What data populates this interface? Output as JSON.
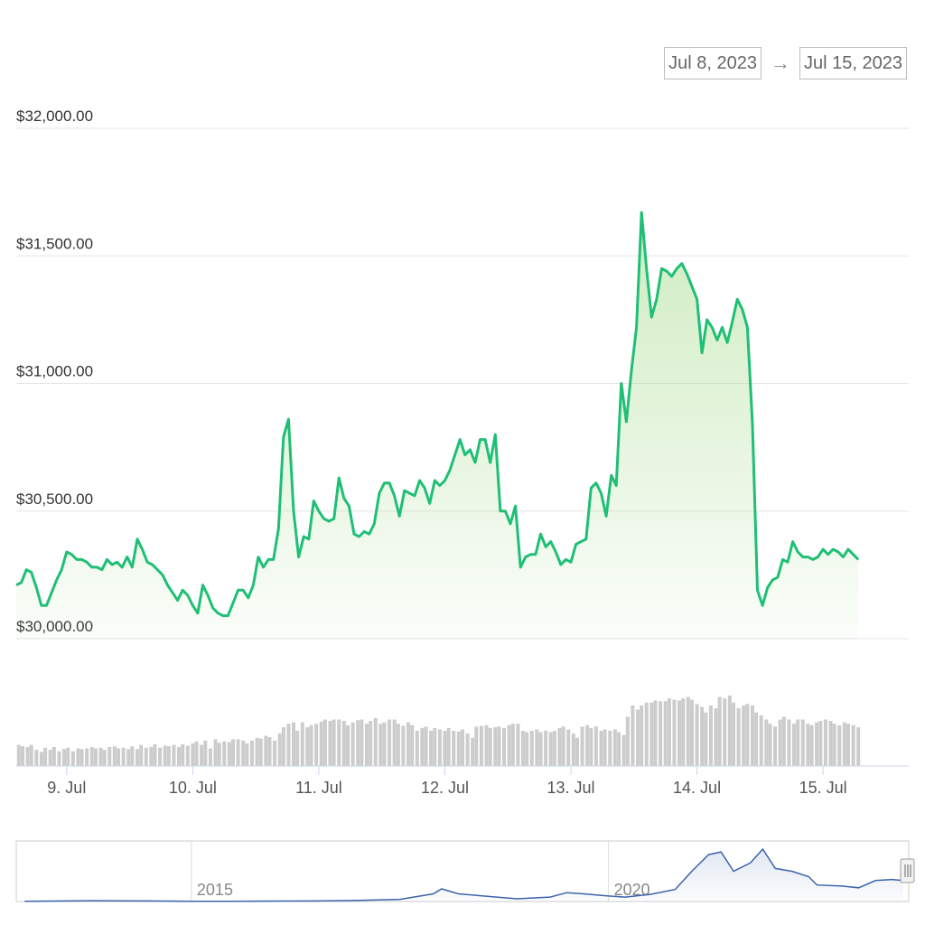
{
  "range_selector": {
    "from": "Jul 8, 2023",
    "arrow": "→",
    "to": "Jul 15, 2023"
  },
  "colors": {
    "line": "#1fbf75",
    "fill": "#a8dc8f",
    "volume": "#cccccc",
    "navigator_line": "#3c64aa",
    "grid": "#e6e6e6"
  },
  "chart_data": {
    "type": "line",
    "y_ticks": [
      "$32,000.00",
      "$31,500.00",
      "$31,000.00",
      "$30,500.00",
      "$30,000.00"
    ],
    "ylim": [
      30000,
      32000
    ],
    "x_ticks": [
      "9. Jul",
      "10. Jul",
      "11. Jul",
      "12. Jul",
      "13. Jul",
      "14. Jul",
      "15. Jul"
    ],
    "xlim": [
      8.6,
      15.68
    ],
    "price_series": [
      [
        8.6,
        30210
      ],
      [
        8.64,
        30220
      ],
      [
        8.68,
        30270
      ],
      [
        8.72,
        30260
      ],
      [
        8.76,
        30200
      ],
      [
        8.8,
        30130
      ],
      [
        8.84,
        30130
      ],
      [
        8.88,
        30180
      ],
      [
        8.92,
        30230
      ],
      [
        8.96,
        30270
      ],
      [
        9.0,
        30340
      ],
      [
        9.04,
        30330
      ],
      [
        9.08,
        30310
      ],
      [
        9.12,
        30310
      ],
      [
        9.16,
        30300
      ],
      [
        9.2,
        30280
      ],
      [
        9.24,
        30280
      ],
      [
        9.28,
        30270
      ],
      [
        9.32,
        30310
      ],
      [
        9.36,
        30290
      ],
      [
        9.4,
        30300
      ],
      [
        9.44,
        30280
      ],
      [
        9.48,
        30320
      ],
      [
        9.52,
        30280
      ],
      [
        9.56,
        30390
      ],
      [
        9.6,
        30350
      ],
      [
        9.64,
        30300
      ],
      [
        9.68,
        30290
      ],
      [
        9.72,
        30270
      ],
      [
        9.76,
        30250
      ],
      [
        9.8,
        30210
      ],
      [
        9.84,
        30180
      ],
      [
        9.88,
        30150
      ],
      [
        9.92,
        30190
      ],
      [
        9.96,
        30170
      ],
      [
        10.0,
        30130
      ],
      [
        10.04,
        30100
      ],
      [
        10.08,
        30210
      ],
      [
        10.12,
        30170
      ],
      [
        10.16,
        30120
      ],
      [
        10.2,
        30100
      ],
      [
        10.24,
        30090
      ],
      [
        10.28,
        30090
      ],
      [
        10.32,
        30140
      ],
      [
        10.36,
        30190
      ],
      [
        10.4,
        30190
      ],
      [
        10.44,
        30160
      ],
      [
        10.48,
        30210
      ],
      [
        10.52,
        30320
      ],
      [
        10.56,
        30280
      ],
      [
        10.6,
        30310
      ],
      [
        10.64,
        30310
      ],
      [
        10.68,
        30430
      ],
      [
        10.72,
        30790
      ],
      [
        10.76,
        30860
      ],
      [
        10.8,
        30500
      ],
      [
        10.84,
        30320
      ],
      [
        10.88,
        30400
      ],
      [
        10.92,
        30390
      ],
      [
        10.96,
        30540
      ],
      [
        11.0,
        30500
      ],
      [
        11.04,
        30470
      ],
      [
        11.08,
        30460
      ],
      [
        11.12,
        30470
      ],
      [
        11.16,
        30630
      ],
      [
        11.2,
        30550
      ],
      [
        11.24,
        30520
      ],
      [
        11.28,
        30410
      ],
      [
        11.32,
        30400
      ],
      [
        11.36,
        30420
      ],
      [
        11.4,
        30410
      ],
      [
        11.44,
        30450
      ],
      [
        11.48,
        30570
      ],
      [
        11.52,
        30610
      ],
      [
        11.56,
        30610
      ],
      [
        11.6,
        30560
      ],
      [
        11.64,
        30480
      ],
      [
        11.68,
        30580
      ],
      [
        11.72,
        30570
      ],
      [
        11.76,
        30560
      ],
      [
        11.8,
        30620
      ],
      [
        11.84,
        30590
      ],
      [
        11.88,
        30530
      ],
      [
        11.92,
        30620
      ],
      [
        11.96,
        30600
      ],
      [
        12.0,
        30620
      ],
      [
        12.04,
        30660
      ],
      [
        12.08,
        30720
      ],
      [
        12.12,
        30780
      ],
      [
        12.16,
        30720
      ],
      [
        12.2,
        30740
      ],
      [
        12.24,
        30690
      ],
      [
        12.28,
        30780
      ],
      [
        12.32,
        30780
      ],
      [
        12.36,
        30690
      ],
      [
        12.4,
        30800
      ],
      [
        12.44,
        30500
      ],
      [
        12.48,
        30500
      ],
      [
        12.52,
        30450
      ],
      [
        12.56,
        30520
      ],
      [
        12.6,
        30280
      ],
      [
        12.64,
        30320
      ],
      [
        12.68,
        30330
      ],
      [
        12.72,
        30330
      ],
      [
        12.76,
        30410
      ],
      [
        12.8,
        30360
      ],
      [
        12.84,
        30380
      ],
      [
        12.88,
        30340
      ],
      [
        12.92,
        30290
      ],
      [
        12.96,
        30310
      ],
      [
        13.0,
        30300
      ],
      [
        13.04,
        30370
      ],
      [
        13.08,
        30380
      ],
      [
        13.12,
        30390
      ],
      [
        13.16,
        30590
      ],
      [
        13.2,
        30610
      ],
      [
        13.24,
        30570
      ],
      [
        13.28,
        30480
      ],
      [
        13.32,
        30640
      ],
      [
        13.36,
        30600
      ],
      [
        13.4,
        31000
      ],
      [
        13.44,
        30850
      ],
      [
        13.48,
        31050
      ],
      [
        13.52,
        31220
      ],
      [
        13.56,
        31670
      ],
      [
        13.6,
        31450
      ],
      [
        13.64,
        31260
      ],
      [
        13.68,
        31330
      ],
      [
        13.72,
        31450
      ],
      [
        13.76,
        31440
      ],
      [
        13.8,
        31420
      ],
      [
        13.84,
        31450
      ],
      [
        13.88,
        31470
      ],
      [
        13.92,
        31430
      ],
      [
        13.96,
        31380
      ],
      [
        14.0,
        31330
      ],
      [
        14.04,
        31120
      ],
      [
        14.08,
        31250
      ],
      [
        14.12,
        31220
      ],
      [
        14.16,
        31170
      ],
      [
        14.2,
        31220
      ],
      [
        14.24,
        31160
      ],
      [
        14.28,
        31240
      ],
      [
        14.32,
        31330
      ],
      [
        14.36,
        31290
      ],
      [
        14.4,
        31220
      ],
      [
        14.44,
        30840
      ],
      [
        14.48,
        30190
      ],
      [
        14.52,
        30130
      ],
      [
        14.56,
        30200
      ],
      [
        14.6,
        30230
      ],
      [
        14.64,
        30240
      ],
      [
        14.68,
        30310
      ],
      [
        14.72,
        30300
      ],
      [
        14.76,
        30380
      ],
      [
        14.8,
        30340
      ],
      [
        14.84,
        30320
      ],
      [
        14.88,
        30320
      ],
      [
        14.92,
        30310
      ],
      [
        14.96,
        30320
      ],
      [
        15.0,
        30350
      ],
      [
        15.04,
        30330
      ],
      [
        15.08,
        30350
      ],
      [
        15.12,
        30340
      ],
      [
        15.16,
        30320
      ],
      [
        15.2,
        30350
      ],
      [
        15.24,
        30330
      ],
      [
        15.28,
        30310
      ]
    ],
    "volume_series": [
      [
        8.62,
        0.3
      ],
      [
        8.65,
        0.28
      ],
      [
        8.69,
        0.27
      ],
      [
        8.72,
        0.3
      ],
      [
        8.76,
        0.23
      ],
      [
        8.8,
        0.2
      ],
      [
        8.83,
        0.26
      ],
      [
        8.87,
        0.23
      ],
      [
        8.9,
        0.27
      ],
      [
        8.94,
        0.21
      ],
      [
        8.98,
        0.24
      ],
      [
        9.01,
        0.26
      ],
      [
        9.05,
        0.21
      ],
      [
        9.09,
        0.25
      ],
      [
        9.12,
        0.24
      ],
      [
        9.16,
        0.25
      ],
      [
        9.2,
        0.27
      ],
      [
        9.23,
        0.25
      ],
      [
        9.27,
        0.26
      ],
      [
        9.3,
        0.23
      ],
      [
        9.34,
        0.27
      ],
      [
        9.38,
        0.28
      ],
      [
        9.41,
        0.25
      ],
      [
        9.45,
        0.26
      ],
      [
        9.49,
        0.24
      ],
      [
        9.52,
        0.28
      ],
      [
        9.56,
        0.24
      ],
      [
        9.59,
        0.3
      ],
      [
        9.63,
        0.26
      ],
      [
        9.67,
        0.27
      ],
      [
        9.7,
        0.31
      ],
      [
        9.74,
        0.26
      ],
      [
        9.78,
        0.29
      ],
      [
        9.81,
        0.28
      ],
      [
        9.85,
        0.3
      ],
      [
        9.89,
        0.27
      ],
      [
        9.92,
        0.31
      ],
      [
        9.96,
        0.29
      ],
      [
        10.0,
        0.32
      ],
      [
        10.03,
        0.35
      ],
      [
        10.07,
        0.3
      ],
      [
        10.1,
        0.36
      ],
      [
        10.14,
        0.25
      ],
      [
        10.18,
        0.38
      ],
      [
        10.21,
        0.33
      ],
      [
        10.25,
        0.35
      ],
      [
        10.29,
        0.34
      ],
      [
        10.32,
        0.38
      ],
      [
        10.36,
        0.38
      ],
      [
        10.4,
        0.36
      ],
      [
        10.43,
        0.32
      ],
      [
        10.47,
        0.36
      ],
      [
        10.51,
        0.4
      ],
      [
        10.54,
        0.39
      ],
      [
        10.58,
        0.43
      ],
      [
        10.61,
        0.41
      ],
      [
        10.65,
        0.36
      ],
      [
        10.69,
        0.46
      ],
      [
        10.72,
        0.55
      ],
      [
        10.76,
        0.6
      ],
      [
        10.8,
        0.62
      ],
      [
        10.83,
        0.5
      ],
      [
        10.87,
        0.62
      ],
      [
        10.91,
        0.55
      ],
      [
        10.94,
        0.58
      ],
      [
        10.98,
        0.6
      ],
      [
        11.02,
        0.63
      ],
      [
        11.05,
        0.66
      ],
      [
        11.09,
        0.64
      ],
      [
        11.12,
        0.66
      ],
      [
        11.16,
        0.66
      ],
      [
        11.2,
        0.64
      ],
      [
        11.23,
        0.58
      ],
      [
        11.27,
        0.62
      ],
      [
        11.31,
        0.65
      ],
      [
        11.34,
        0.66
      ],
      [
        11.38,
        0.6
      ],
      [
        11.41,
        0.64
      ],
      [
        11.45,
        0.68
      ],
      [
        11.49,
        0.6
      ],
      [
        11.52,
        0.62
      ],
      [
        11.56,
        0.66
      ],
      [
        11.6,
        0.66
      ],
      [
        11.63,
        0.6
      ],
      [
        11.67,
        0.57
      ],
      [
        11.71,
        0.62
      ],
      [
        11.74,
        0.58
      ],
      [
        11.78,
        0.5
      ],
      [
        11.82,
        0.54
      ],
      [
        11.85,
        0.56
      ],
      [
        11.89,
        0.5
      ],
      [
        11.92,
        0.54
      ],
      [
        11.96,
        0.52
      ],
      [
        12.0,
        0.5
      ],
      [
        12.03,
        0.54
      ],
      [
        12.07,
        0.5
      ],
      [
        12.11,
        0.49
      ],
      [
        12.14,
        0.52
      ],
      [
        12.18,
        0.46
      ],
      [
        12.22,
        0.4
      ],
      [
        12.25,
        0.56
      ],
      [
        12.29,
        0.57
      ],
      [
        12.33,
        0.58
      ],
      [
        12.36,
        0.54
      ],
      [
        12.4,
        0.55
      ],
      [
        12.43,
        0.56
      ],
      [
        12.47,
        0.54
      ],
      [
        12.51,
        0.58
      ],
      [
        12.54,
        0.6
      ],
      [
        12.58,
        0.6
      ],
      [
        12.62,
        0.5
      ],
      [
        12.65,
        0.48
      ],
      [
        12.69,
        0.5
      ],
      [
        12.73,
        0.52
      ],
      [
        12.76,
        0.48
      ],
      [
        12.8,
        0.5
      ],
      [
        12.84,
        0.48
      ],
      [
        12.87,
        0.5
      ],
      [
        12.91,
        0.54
      ],
      [
        12.94,
        0.56
      ],
      [
        12.98,
        0.52
      ],
      [
        13.02,
        0.46
      ],
      [
        13.05,
        0.4
      ],
      [
        13.09,
        0.56
      ],
      [
        13.13,
        0.58
      ],
      [
        13.16,
        0.54
      ],
      [
        13.2,
        0.56
      ],
      [
        13.24,
        0.5
      ],
      [
        13.27,
        0.52
      ],
      [
        13.31,
        0.5
      ],
      [
        13.35,
        0.52
      ],
      [
        13.38,
        0.48
      ],
      [
        13.42,
        0.44
      ],
      [
        13.45,
        0.7
      ],
      [
        13.49,
        0.86
      ],
      [
        13.53,
        0.8
      ],
      [
        13.56,
        0.86
      ],
      [
        13.6,
        0.9
      ],
      [
        13.64,
        0.9
      ],
      [
        13.67,
        0.93
      ],
      [
        13.71,
        0.92
      ],
      [
        13.75,
        0.92
      ],
      [
        13.78,
        0.96
      ],
      [
        13.82,
        0.94
      ],
      [
        13.86,
        0.93
      ],
      [
        13.89,
        0.96
      ],
      [
        13.93,
        0.98
      ],
      [
        13.96,
        0.94
      ],
      [
        14.0,
        0.88
      ],
      [
        14.04,
        0.84
      ],
      [
        14.07,
        0.76
      ],
      [
        14.11,
        0.86
      ],
      [
        14.15,
        0.82
      ],
      [
        14.18,
        0.98
      ],
      [
        14.22,
        0.96
      ],
      [
        14.26,
        1.0
      ],
      [
        14.29,
        0.9
      ],
      [
        14.33,
        0.82
      ],
      [
        14.37,
        0.86
      ],
      [
        14.4,
        0.88
      ],
      [
        14.44,
        0.86
      ],
      [
        14.47,
        0.76
      ],
      [
        14.51,
        0.72
      ],
      [
        14.55,
        0.66
      ],
      [
        14.58,
        0.6
      ],
      [
        14.62,
        0.56
      ],
      [
        14.66,
        0.66
      ],
      [
        14.69,
        0.7
      ],
      [
        14.73,
        0.66
      ],
      [
        14.77,
        0.6
      ],
      [
        14.8,
        0.66
      ],
      [
        14.84,
        0.66
      ],
      [
        14.88,
        0.6
      ],
      [
        14.91,
        0.58
      ],
      [
        14.95,
        0.62
      ],
      [
        14.98,
        0.64
      ],
      [
        15.02,
        0.66
      ],
      [
        15.06,
        0.64
      ],
      [
        15.09,
        0.6
      ],
      [
        15.13,
        0.58
      ],
      [
        15.17,
        0.62
      ],
      [
        15.2,
        0.6
      ],
      [
        15.24,
        0.58
      ],
      [
        15.28,
        0.55
      ]
    ],
    "navigator": {
      "labels": [
        "2015",
        "2020"
      ],
      "series": [
        [
          2013.0,
          0.005
        ],
        [
          2013.8,
          0.015
        ],
        [
          2014.5,
          0.01
        ],
        [
          2015.0,
          0.005
        ],
        [
          2015.5,
          0.005
        ],
        [
          2016.0,
          0.008
        ],
        [
          2016.5,
          0.01
        ],
        [
          2017.0,
          0.02
        ],
        [
          2017.5,
          0.04
        ],
        [
          2017.9,
          0.14
        ],
        [
          2018.0,
          0.23
        ],
        [
          2018.2,
          0.14
        ],
        [
          2018.5,
          0.1
        ],
        [
          2018.9,
          0.05
        ],
        [
          2019.3,
          0.08
        ],
        [
          2019.5,
          0.16
        ],
        [
          2019.7,
          0.14
        ],
        [
          2020.0,
          0.1
        ],
        [
          2020.2,
          0.08
        ],
        [
          2020.5,
          0.13
        ],
        [
          2020.8,
          0.22
        ],
        [
          2021.0,
          0.55
        ],
        [
          2021.2,
          0.85
        ],
        [
          2021.35,
          0.9
        ],
        [
          2021.5,
          0.55
        ],
        [
          2021.7,
          0.7
        ],
        [
          2021.85,
          0.95
        ],
        [
          2022.0,
          0.6
        ],
        [
          2022.2,
          0.55
        ],
        [
          2022.4,
          0.45
        ],
        [
          2022.5,
          0.3
        ],
        [
          2022.8,
          0.28
        ],
        [
          2023.0,
          0.25
        ],
        [
          2023.2,
          0.38
        ],
        [
          2023.4,
          0.4
        ],
        [
          2023.53,
          0.38
        ]
      ],
      "xlim": [
        2012.9,
        2023.6
      ]
    }
  }
}
